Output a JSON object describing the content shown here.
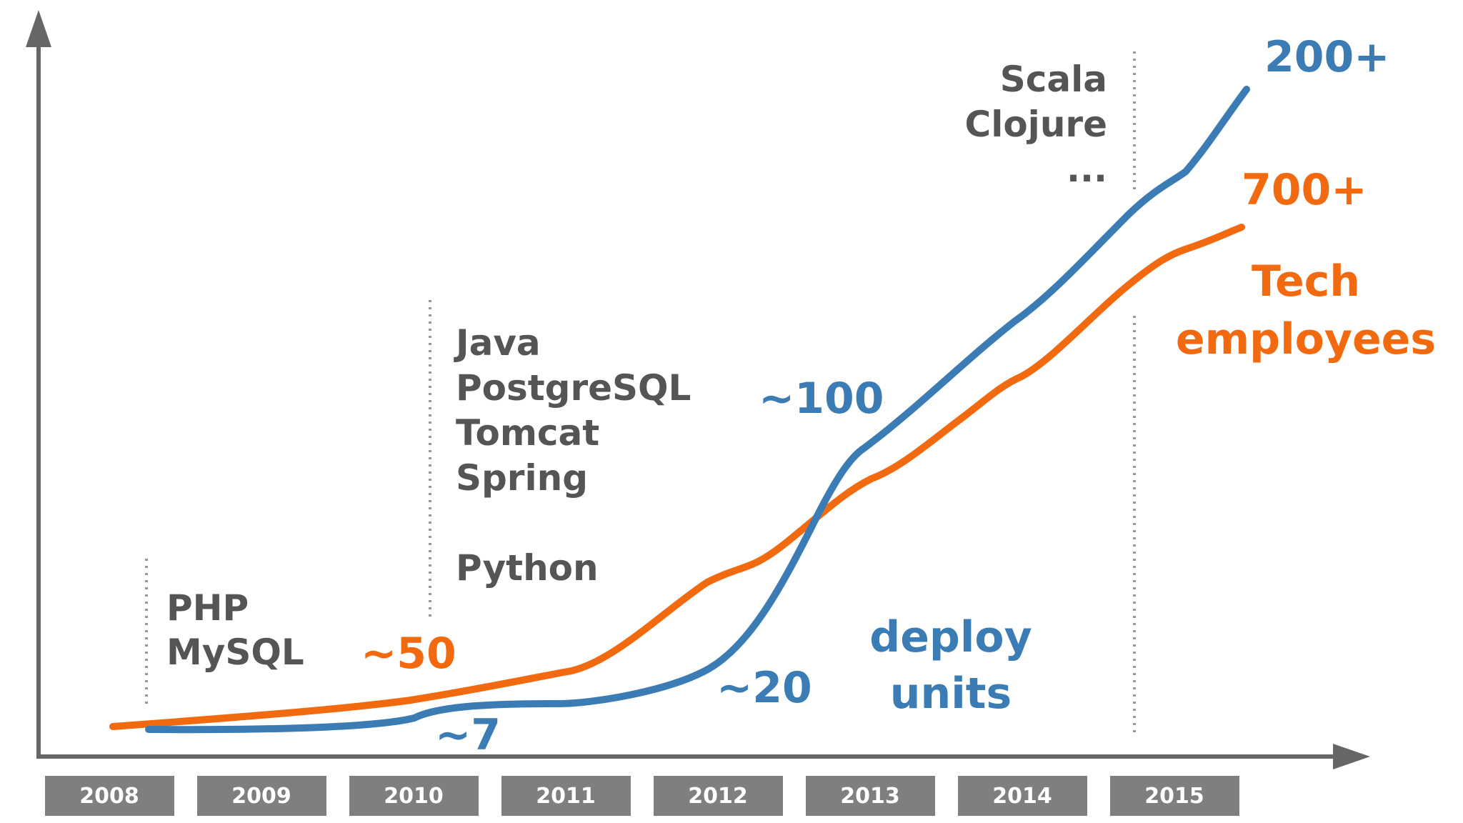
{
  "chart_data": {
    "type": "line",
    "title": "",
    "xlabel": "",
    "ylabel": "",
    "x": [
      "2008",
      "2009",
      "2010",
      "2011",
      "2012",
      "2013",
      "2014",
      "2015"
    ],
    "series": [
      {
        "name": "Tech employees",
        "color": "#f26a10",
        "data_labels": [
          "~50",
          "700+"
        ]
      },
      {
        "name": "deploy units",
        "name_lines": [
          "deploy",
          "units"
        ],
        "color": "#3c7cb4",
        "data_labels": [
          "~7",
          "~20",
          "~100",
          "200+"
        ]
      }
    ],
    "series_name_lines": {
      "tech_employees": [
        "Tech",
        "employees"
      ],
      "deploy_units": [
        "deploy",
        "units"
      ]
    },
    "technology_annotations": [
      {
        "year": "2008",
        "lines": [
          "PHP",
          "MySQL"
        ]
      },
      {
        "year": "2010",
        "lines": [
          "Java",
          "PostgreSQL",
          "Tomcat",
          "Spring",
          "",
          "Python"
        ]
      },
      {
        "year": "2015",
        "lines": [
          "Scala",
          "Clojure",
          "..."
        ]
      }
    ],
    "axis_color": "#666666",
    "year_box_color": "#7f7f7f",
    "grid": false
  }
}
